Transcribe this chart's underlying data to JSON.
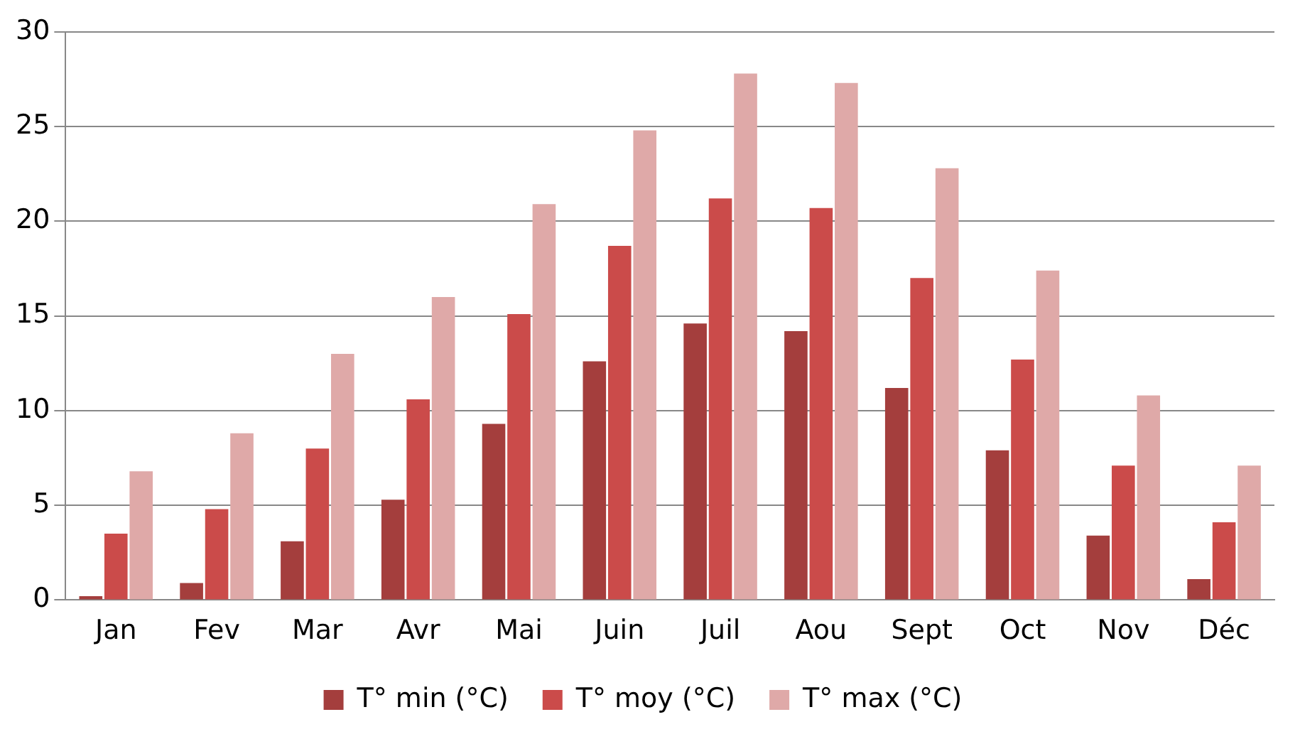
{
  "chart_data": {
    "type": "bar",
    "categories": [
      "Jan",
      "Fev",
      "Mar",
      "Avr",
      "Mai",
      "Juin",
      "Juil",
      "Aou",
      "Sept",
      "Oct",
      "Nov",
      "Déc"
    ],
    "series": [
      {
        "name": "T° min (°C)",
        "color": "#a43e3d",
        "values": [
          0.2,
          0.9,
          3.1,
          5.3,
          9.3,
          12.6,
          14.6,
          14.2,
          11.2,
          7.9,
          3.4,
          1.1
        ]
      },
      {
        "name": "T° moy (°C)",
        "color": "#cb4b4a",
        "values": [
          3.5,
          4.8,
          8.0,
          10.6,
          15.1,
          18.7,
          21.2,
          20.7,
          17.0,
          12.7,
          7.1,
          4.1
        ]
      },
      {
        "name": "T° max (°C)",
        "color": "#dfa9a8",
        "values": [
          6.8,
          8.8,
          13.0,
          16.0,
          20.9,
          24.8,
          27.8,
          27.3,
          22.8,
          17.4,
          10.8,
          7.1
        ]
      }
    ],
    "ylim": [
      0,
      30
    ],
    "yticks": [
      0,
      5,
      10,
      15,
      20,
      25,
      30
    ],
    "grid": "y",
    "legend": "bottom"
  }
}
